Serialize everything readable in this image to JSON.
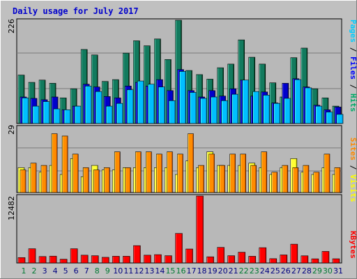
{
  "chart_data": [
    {
      "type": "bar",
      "panel": "top",
      "title": "Daily usage for July 2017",
      "ymax_label": "226",
      "ylim": [
        0,
        226
      ],
      "right_label": [
        {
          "text": "Pages",
          "color": "#00ccff"
        },
        {
          "text": " / ",
          "color": "#000000"
        },
        {
          "text": "Files",
          "color": "#0000ff"
        },
        {
          "text": " / ",
          "color": "#000000"
        },
        {
          "text": "Hits",
          "color": "#00aa66"
        }
      ],
      "categories": [
        "1",
        "2",
        "3",
        "4",
        "5",
        "6",
        "7",
        "8",
        "9",
        "10",
        "11",
        "12",
        "13",
        "14",
        "15",
        "16",
        "17",
        "18",
        "19",
        "20",
        "21",
        "22",
        "23",
        "24",
        "25",
        "26",
        "27",
        "28",
        "29",
        "30",
        "31"
      ],
      "series": [
        {
          "name": "Hits",
          "color": "#127a5e",
          "values": [
            106,
            90,
            95,
            88,
            56,
            76,
            162,
            150,
            92,
            96,
            154,
            181,
            170,
            185,
            140,
            226,
            116,
            107,
            97,
            122,
            130,
            183,
            145,
            130,
            89,
            58,
            144,
            165,
            76,
            56,
            38
          ]
        },
        {
          "name": "Files",
          "color": "#0000cc",
          "values": [
            58,
            55,
            52,
            58,
            30,
            38,
            86,
            80,
            59,
            56,
            82,
            90,
            82,
            96,
            72,
            118,
            72,
            58,
            72,
            60,
            76,
            95,
            60,
            69,
            45,
            88,
            98,
            80,
            40,
            30,
            36
          ]
        },
        {
          "name": "Pages",
          "color": "#00bfff",
          "values": [
            56,
            38,
            48,
            32,
            30,
            38,
            82,
            70,
            38,
            44,
            74,
            93,
            86,
            80,
            50,
            114,
            68,
            55,
            58,
            50,
            64,
            95,
            70,
            62,
            44,
            55,
            96,
            78,
            38,
            25,
            20
          ]
        }
      ]
    },
    {
      "type": "bar",
      "panel": "middle",
      "ymax_label": "29",
      "ylim": [
        0,
        29
      ],
      "right_label": [
        {
          "text": "Sites",
          "color": "#ff8800"
        },
        {
          "text": " / ",
          "color": "#000000"
        },
        {
          "text": "Visits",
          "color": "#ffff00"
        }
      ],
      "series": [
        {
          "name": "Visits",
          "color": "#ffff33",
          "values": [
            11,
            11,
            9,
            12,
            8,
            15,
            7,
            12,
            10,
            10,
            11,
            11,
            11,
            11,
            11,
            8,
            14,
            11,
            18,
            12,
            12,
            12,
            13,
            11,
            8,
            11,
            15,
            9,
            8,
            11,
            8
          ]
        },
        {
          "name": "Sites",
          "color": "#ff8c00",
          "values": [
            10,
            13,
            12,
            26,
            25,
            17,
            11,
            10,
            11,
            18,
            11,
            18,
            18,
            17,
            18,
            17,
            26,
            12,
            17,
            12,
            17,
            17,
            12,
            18,
            9,
            12,
            11,
            12,
            9,
            17,
            11
          ]
        }
      ]
    },
    {
      "type": "bar",
      "panel": "bottom",
      "ymax_label": "12482",
      "ylim": [
        0,
        12482
      ],
      "right_label": [
        {
          "text": "KBytes",
          "color": "#ff0000"
        }
      ],
      "series": [
        {
          "name": "KBytes",
          "color": "#ff0000",
          "values": [
            1000,
            2650,
            1200,
            1270,
            700,
            2650,
            1450,
            1350,
            1050,
            1250,
            1250,
            3230,
            1450,
            1550,
            1350,
            5500,
            2600,
            12482,
            1150,
            2900,
            1350,
            2000,
            1250,
            2850,
            800,
            1500,
            3500,
            1330,
            770,
            2150,
            780
          ]
        }
      ]
    }
  ],
  "x_labels": [
    {
      "text": "1",
      "weekend": true
    },
    {
      "text": "2",
      "weekend": true
    },
    {
      "text": "3",
      "weekend": false
    },
    {
      "text": "4",
      "weekend": false
    },
    {
      "text": "5",
      "weekend": false
    },
    {
      "text": "6",
      "weekend": false
    },
    {
      "text": "7",
      "weekend": false
    },
    {
      "text": "8",
      "weekend": true
    },
    {
      "text": "9",
      "weekend": true
    },
    {
      "text": "10",
      "weekend": false
    },
    {
      "text": "11",
      "weekend": false
    },
    {
      "text": "12",
      "weekend": false
    },
    {
      "text": "13",
      "weekend": false
    },
    {
      "text": "14",
      "weekend": false
    },
    {
      "text": "15",
      "weekend": true
    },
    {
      "text": "16",
      "weekend": true
    },
    {
      "text": "17",
      "weekend": false
    },
    {
      "text": "18",
      "weekend": false
    },
    {
      "text": "19",
      "weekend": false
    },
    {
      "text": "20",
      "weekend": false
    },
    {
      "text": "21",
      "weekend": false
    },
    {
      "text": "22",
      "weekend": true
    },
    {
      "text": "23",
      "weekend": true
    },
    {
      "text": "24",
      "weekend": false
    },
    {
      "text": "25",
      "weekend": false
    },
    {
      "text": "26",
      "weekend": false
    },
    {
      "text": "27",
      "weekend": false
    },
    {
      "text": "28",
      "weekend": false
    },
    {
      "text": "29",
      "weekend": true
    },
    {
      "text": "30",
      "weekend": true
    },
    {
      "text": "31",
      "weekend": false
    }
  ],
  "colors": {
    "background": "#c0c0c0",
    "panel": "#b8b8b8",
    "title": "#0000cc",
    "weekday_label": "#000080",
    "weekend_label": "#007a33"
  }
}
